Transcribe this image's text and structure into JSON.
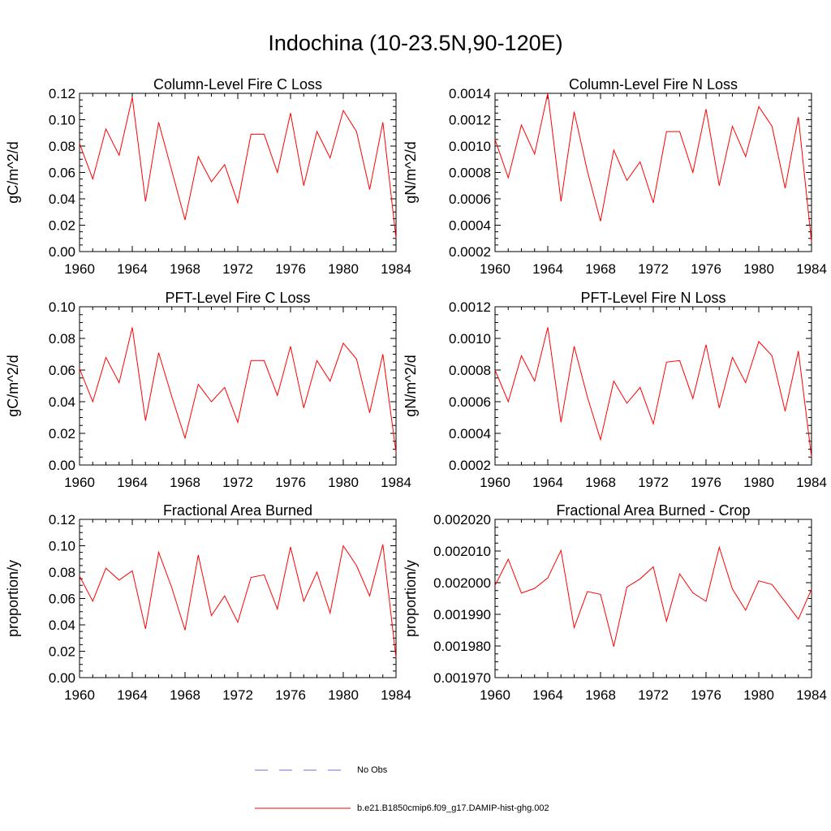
{
  "title": "Indochina (10-23.5N,90-120E)",
  "chart_data": [
    {
      "type": "line",
      "title": "Column-Level Fire C Loss",
      "ylabel": "gC/m^2/d",
      "xlim": [
        1960,
        1984
      ],
      "ylim": [
        0,
        0.12
      ],
      "xticks": [
        "1960",
        "1964",
        "1968",
        "1972",
        "1976",
        "1980",
        "1984"
      ],
      "yticks": [
        "0.00",
        "0.02",
        "0.04",
        "0.06",
        "0.08",
        "0.10",
        "0.12"
      ],
      "x": [
        1960,
        1961,
        1962,
        1963,
        1964,
        1965,
        1966,
        1967,
        1968,
        1969,
        1970,
        1971,
        1972,
        1973,
        1974,
        1975,
        1976,
        1977,
        1978,
        1979,
        1980,
        1981,
        1982,
        1983,
        1984
      ],
      "series": [
        {
          "values": [
            0.082,
            0.055,
            0.093,
            0.073,
            0.117,
            0.038,
            0.098,
            0.061,
            0.024,
            0.072,
            0.053,
            0.066,
            0.037,
            0.089,
            0.089,
            0.06,
            0.105,
            0.05,
            0.091,
            0.071,
            0.107,
            0.091,
            0.047,
            0.098,
            0.01
          ]
        }
      ]
    },
    {
      "type": "line",
      "title": "Column-Level Fire N Loss",
      "ylabel": "gN/m^2/d",
      "xlim": [
        1960,
        1984
      ],
      "ylim": [
        0.0002,
        0.0014
      ],
      "xticks": [
        "1960",
        "1964",
        "1968",
        "1972",
        "1976",
        "1980",
        "1984"
      ],
      "yticks": [
        "0.0002",
        "0.0004",
        "0.0006",
        "0.0008",
        "0.0010",
        "0.0012",
        "0.0014"
      ],
      "x": [
        1960,
        1961,
        1962,
        1963,
        1964,
        1965,
        1966,
        1967,
        1968,
        1969,
        1970,
        1971,
        1972,
        1973,
        1974,
        1975,
        1976,
        1977,
        1978,
        1979,
        1980,
        1981,
        1982,
        1983,
        1984
      ],
      "series": [
        {
          "values": [
            0.00105,
            0.00076,
            0.00116,
            0.00094,
            0.0014,
            0.00058,
            0.00126,
            0.00081,
            0.00043,
            0.00097,
            0.00074,
            0.00088,
            0.00057,
            0.00111,
            0.00111,
            0.0008,
            0.00128,
            0.0007,
            0.00115,
            0.00092,
            0.0013,
            0.00115,
            0.00068,
            0.00122,
            0.00027
          ]
        }
      ]
    },
    {
      "type": "line",
      "title": "PFT-Level Fire C Loss",
      "ylabel": "gC/m^2/d",
      "xlim": [
        1960,
        1984
      ],
      "ylim": [
        0,
        0.1
      ],
      "xticks": [
        "1960",
        "1964",
        "1968",
        "1972",
        "1976",
        "1980",
        "1984"
      ],
      "yticks": [
        "0.00",
        "0.02",
        "0.04",
        "0.06",
        "0.08",
        "0.10"
      ],
      "x": [
        1960,
        1961,
        1962,
        1963,
        1964,
        1965,
        1966,
        1967,
        1968,
        1969,
        1970,
        1971,
        1972,
        1973,
        1974,
        1975,
        1976,
        1977,
        1978,
        1979,
        1980,
        1981,
        1982,
        1983,
        1984
      ],
      "series": [
        {
          "values": [
            0.061,
            0.04,
            0.068,
            0.052,
            0.087,
            0.028,
            0.071,
            0.043,
            0.017,
            0.051,
            0.04,
            0.049,
            0.027,
            0.066,
            0.066,
            0.044,
            0.075,
            0.036,
            0.066,
            0.053,
            0.077,
            0.067,
            0.033,
            0.07,
            0.008
          ]
        }
      ]
    },
    {
      "type": "line",
      "title": "PFT-Level Fire N Loss",
      "ylabel": "gN/m^2/d",
      "xlim": [
        1960,
        1984
      ],
      "ylim": [
        0.0002,
        0.0012
      ],
      "xticks": [
        "1960",
        "1964",
        "1968",
        "1972",
        "1976",
        "1980",
        "1984"
      ],
      "yticks": [
        "0.0002",
        "0.0004",
        "0.0006",
        "0.0008",
        "0.0010",
        "0.0012"
      ],
      "x": [
        1960,
        1961,
        1962,
        1963,
        1964,
        1965,
        1966,
        1967,
        1968,
        1969,
        1970,
        1971,
        1972,
        1973,
        1974,
        1975,
        1976,
        1977,
        1978,
        1979,
        1980,
        1981,
        1982,
        1983,
        1984
      ],
      "series": [
        {
          "values": [
            0.0008,
            0.0006,
            0.00089,
            0.00073,
            0.00107,
            0.00047,
            0.00095,
            0.00063,
            0.00036,
            0.00073,
            0.00059,
            0.00069,
            0.00046,
            0.00085,
            0.00086,
            0.00062,
            0.00096,
            0.00056,
            0.00088,
            0.00072,
            0.00098,
            0.00089,
            0.00054,
            0.00092,
            0.00025
          ]
        }
      ]
    },
    {
      "type": "line",
      "title": "Fractional Area Burned",
      "ylabel": "proportion/y",
      "xlim": [
        1960,
        1984
      ],
      "ylim": [
        0,
        0.12
      ],
      "xticks": [
        "1960",
        "1964",
        "1968",
        "1972",
        "1976",
        "1980",
        "1984"
      ],
      "yticks": [
        "0.00",
        "0.02",
        "0.04",
        "0.06",
        "0.08",
        "0.10",
        "0.12"
      ],
      "x": [
        1960,
        1961,
        1962,
        1963,
        1964,
        1965,
        1966,
        1967,
        1968,
        1969,
        1970,
        1971,
        1972,
        1973,
        1974,
        1975,
        1976,
        1977,
        1978,
        1979,
        1980,
        1981,
        1982,
        1983,
        1984
      ],
      "series": [
        {
          "values": [
            0.077,
            0.058,
            0.083,
            0.074,
            0.081,
            0.037,
            0.095,
            0.068,
            0.036,
            0.093,
            0.047,
            0.062,
            0.042,
            0.076,
            0.078,
            0.052,
            0.099,
            0.058,
            0.08,
            0.049,
            0.1,
            0.085,
            0.062,
            0.101,
            0.015
          ]
        }
      ]
    },
    {
      "type": "line",
      "title": "Fractional Area Burned - Crop",
      "ylabel": "proportion/y",
      "xlim": [
        1960,
        1984
      ],
      "ylim": [
        0.00197,
        0.00202
      ],
      "xticks": [
        "1960",
        "1964",
        "1968",
        "1972",
        "1976",
        "1980",
        "1984"
      ],
      "yticks": [
        "0.001970",
        "0.001980",
        "0.001990",
        "0.002000",
        "0.002010",
        "0.002020"
      ],
      "x": [
        1960,
        1961,
        1962,
        1963,
        1964,
        1965,
        1966,
        1967,
        1968,
        1969,
        1970,
        1971,
        1972,
        1973,
        1974,
        1975,
        1976,
        1977,
        1978,
        1979,
        1980,
        1981,
        1982,
        1983,
        1984
      ],
      "series": [
        {
          "values": [
            0.0019991,
            0.0020074,
            0.0019967,
            0.0019982,
            0.0020015,
            0.0020102,
            0.0019858,
            0.0019972,
            0.0019963,
            0.0019798,
            0.0019986,
            0.0020012,
            0.002005,
            0.0019878,
            0.0020028,
            0.0019968,
            0.0019941,
            0.0020112,
            0.001998,
            0.0019913,
            0.0020006,
            0.0019994,
            0.001994,
            0.0019885,
            0.0019979
          ]
        }
      ]
    }
  ],
  "legend": {
    "items": [
      {
        "label": "No Obs",
        "color": "#6f6fd8",
        "style": "dashed"
      },
      {
        "label": "b.e21.B1850cmip6.f09_g17.DAMIP-hist-ghg.002",
        "color": "#ff0000",
        "style": "solid"
      }
    ]
  },
  "colors": {
    "series": "#ff0000",
    "axis": "#000000"
  }
}
